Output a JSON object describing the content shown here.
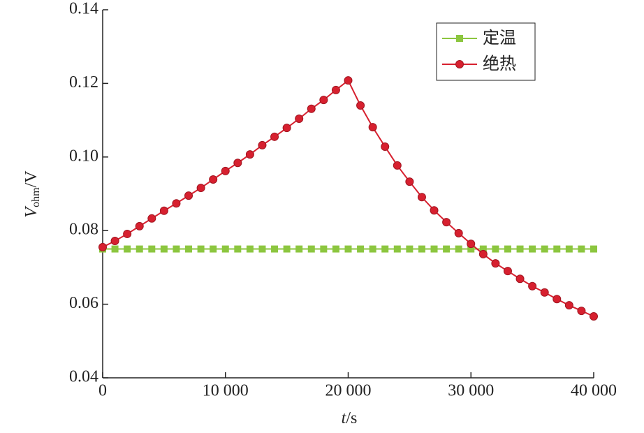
{
  "chart_data": {
    "type": "line",
    "x_label": {
      "symbol": "t",
      "unit": "/s"
    },
    "y_label": {
      "symbol": "V",
      "subscript": "ohm",
      "unit": "/V"
    },
    "x": [
      0,
      1000,
      2000,
      3000,
      4000,
      5000,
      6000,
      7000,
      8000,
      9000,
      10000,
      11000,
      12000,
      13000,
      14000,
      15000,
      16000,
      17000,
      18000,
      19000,
      20000,
      21000,
      22000,
      23000,
      24000,
      25000,
      26000,
      27000,
      28000,
      29000,
      30000,
      31000,
      32000,
      33000,
      34000,
      35000,
      36000,
      37000,
      38000,
      39000,
      40000
    ],
    "series": [
      {
        "name": "定温",
        "color": "#8cc63f",
        "marker": "square",
        "values": [
          0.075,
          0.075,
          0.075,
          0.075,
          0.075,
          0.075,
          0.075,
          0.075,
          0.075,
          0.075,
          0.075,
          0.075,
          0.075,
          0.075,
          0.075,
          0.075,
          0.075,
          0.075,
          0.075,
          0.075,
          0.075,
          0.075,
          0.075,
          0.075,
          0.075,
          0.075,
          0.075,
          0.075,
          0.075,
          0.075,
          0.075,
          0.075,
          0.075,
          0.075,
          0.075,
          0.075,
          0.075,
          0.075,
          0.075,
          0.075,
          0.075
        ]
      },
      {
        "name": "绝热",
        "color": "#d7202f",
        "marker": "circle",
        "values": [
          0.0755,
          0.0772,
          0.0791,
          0.0812,
          0.0833,
          0.0854,
          0.0874,
          0.0895,
          0.0916,
          0.0939,
          0.0962,
          0.0984,
          0.1007,
          0.1032,
          0.1055,
          0.1079,
          0.1104,
          0.1131,
          0.1155,
          0.1182,
          0.1208,
          0.114,
          0.1081,
          0.1028,
          0.0977,
          0.0933,
          0.0891,
          0.0855,
          0.0823,
          0.0793,
          0.0764,
          0.0736,
          0.0711,
          0.069,
          0.0669,
          0.0649,
          0.0632,
          0.0614,
          0.0597,
          0.0582,
          0.0567
        ]
      }
    ],
    "xlim": [
      0,
      40000
    ],
    "xticks": [
      0,
      {
        "value": 10000,
        "label": "10 000"
      },
      {
        "value": 20000,
        "label": "20 000"
      },
      {
        "value": 30000,
        "label": "30 000"
      },
      {
        "value": 40000,
        "label": "40 000"
      }
    ],
    "ylim": [
      0.04,
      0.14
    ],
    "yticks": [
      0.04,
      0.06,
      0.08,
      {
        "value": 0.1,
        "label": "0.10"
      },
      0.12,
      0.14
    ],
    "legend": "upper right"
  }
}
